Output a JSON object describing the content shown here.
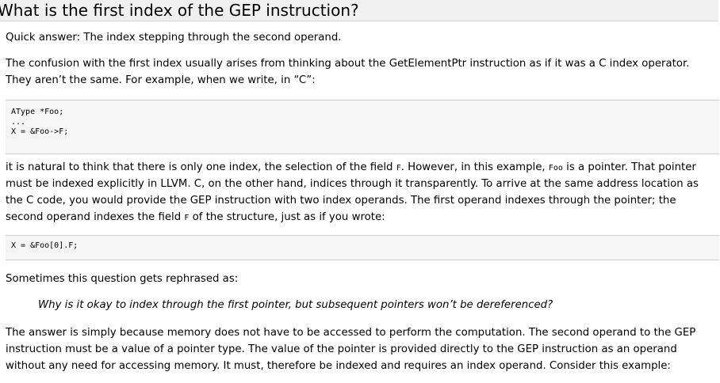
{
  "heading": "What is the first index of the GEP instruction?",
  "para1": "Quick answer: The index stepping through the second operand.",
  "para2": {
    "line1": "The confusion with the first index usually arises from thinking about the GetElementPtr instruction as if it was a C index operator.",
    "line2": "They aren’t the same. For example, when we write, in “C”:"
  },
  "code1": [
    "AType *Foo;",
    "...",
    "X = &Foo->F;"
  ],
  "para3": {
    "l1_a": "it is natural to think that there is only one index, the selection of the field ",
    "l1_code1": "F",
    "l1_b": ". However, in this example, ",
    "l1_code2": "Foo",
    "l1_c": " is a pointer. That pointer",
    "l2": "must be indexed explicitly in LLVM. C, on the other hand, indices through it transparently. To arrive at the same address location as",
    "l3": "the C code, you would provide the GEP instruction with two index operands. The first operand indexes through the pointer; the",
    "l4_a": "second operand indexes the field ",
    "l4_code": "F",
    "l4_b": " of the structure, just as if you wrote:"
  },
  "code2": [
    "X = &Foo[0].F;"
  ],
  "para4": "Sometimes this question gets rephrased as:",
  "quote": "Why is it okay to index through the first pointer, but subsequent pointers won’t be dereferenced?",
  "para5": {
    "line1": "The answer is simply because memory does not have to be accessed to perform the computation. The second operand to the GEP",
    "line2": "instruction must be a value of a pointer type. The value of the pointer is provided directly to the GEP instruction as an operand",
    "line3": "without any need for accessing memory. It must, therefore be indexed and requires an index operand. Consider this example:"
  }
}
